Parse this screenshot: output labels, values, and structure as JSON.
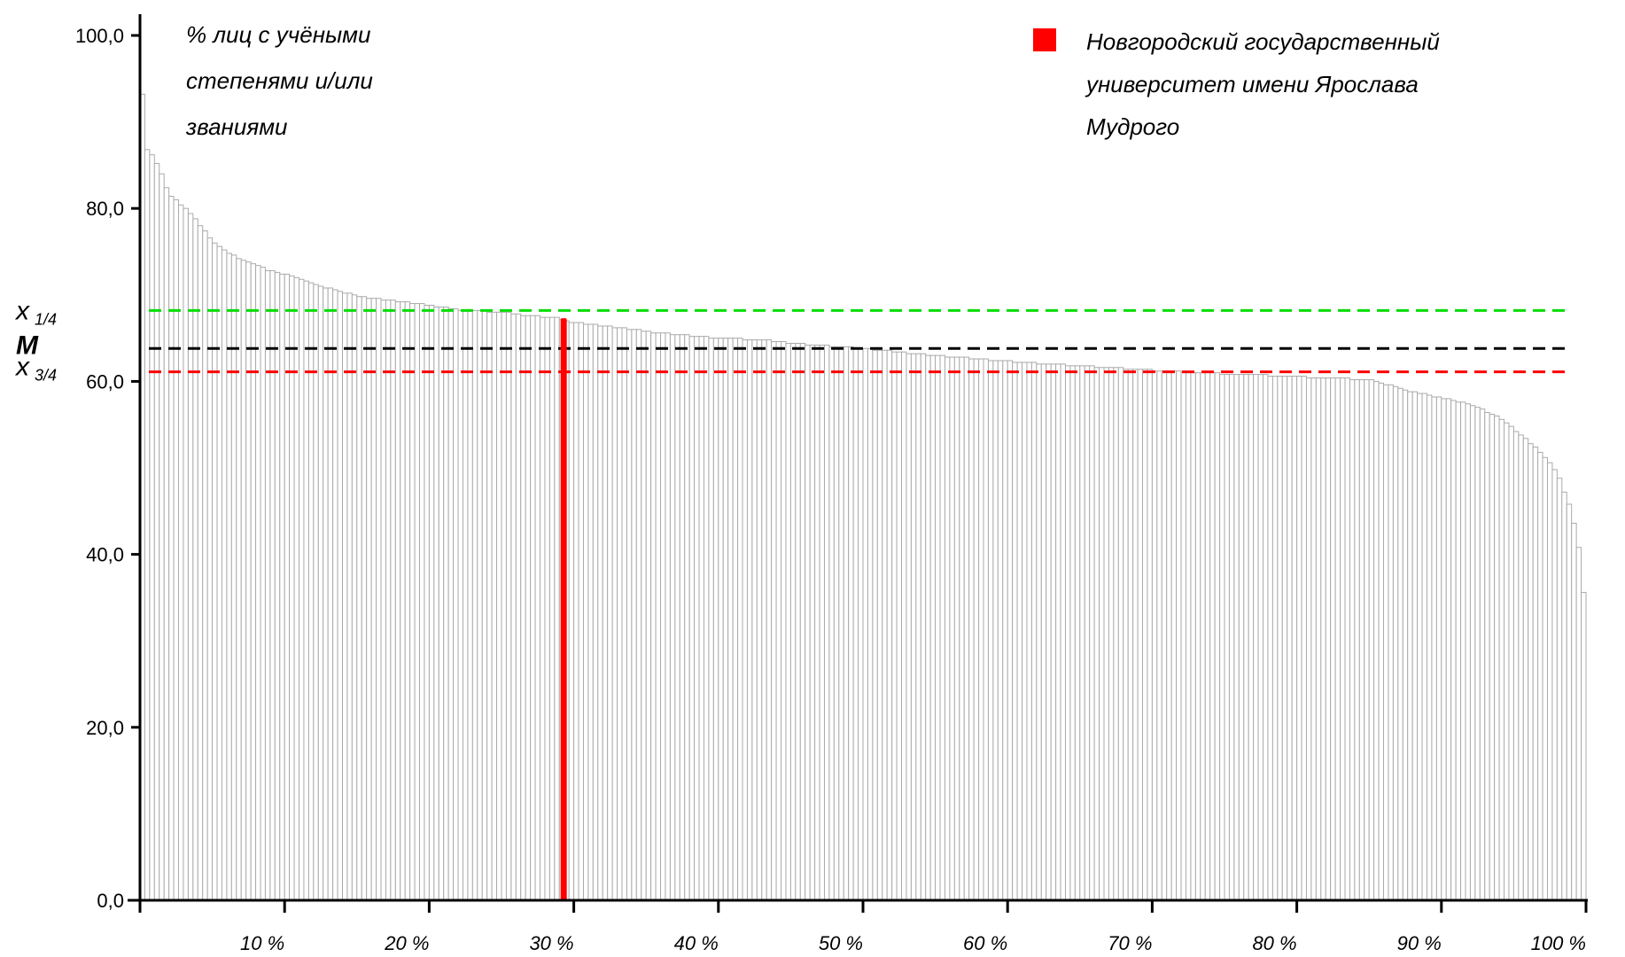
{
  "chart_data": {
    "type": "bar",
    "title_lines": [
      "% лиц с учёными",
      "степенями и/или",
      "званиями"
    ],
    "ylim": [
      0,
      100
    ],
    "yticks": [
      "100,0",
      "80,0",
      "60,0",
      "40,0",
      "20,0",
      "0,0"
    ],
    "ytick_values": [
      100,
      80,
      60,
      40,
      20,
      0
    ],
    "xlim": [
      0,
      100
    ],
    "xticks": [
      "10 %",
      "20 %",
      "30 %",
      "40 %",
      "50 %",
      "60 %",
      "70 %",
      "80 %",
      "90 %",
      "100 %"
    ],
    "xtick_values": [
      10,
      20,
      30,
      40,
      50,
      60,
      70,
      80,
      90,
      100
    ],
    "legend": {
      "placement": "top-right",
      "color": "#ff0000",
      "lines": [
        "Новгородский государственный",
        "университет имени Ярослава",
        "Мудрого"
      ]
    },
    "highlight": {
      "x": 29.3,
      "value": 67.3,
      "color": "#ff0000"
    },
    "reference_lines": [
      {
        "label": "x",
        "sub": "1/4",
        "value": 68.2,
        "color": "#00dd00"
      },
      {
        "label": "M",
        "sub": "",
        "value": 63.8,
        "color": "#000000"
      },
      {
        "label": "x",
        "sub": "3/4",
        "value": 61.1,
        "color": "#ff0000"
      }
    ],
    "bar_color": "#aaaaaa",
    "distribution_profile": [
      [
        0,
        93.1
      ],
      [
        0.3,
        93.1
      ],
      [
        0.5,
        86.8
      ],
      [
        1,
        85.9
      ],
      [
        1.5,
        84.0
      ],
      [
        2,
        81.6
      ],
      [
        3,
        80.2
      ],
      [
        4,
        78.4
      ],
      [
        5,
        76.2
      ],
      [
        6,
        75.0
      ],
      [
        7,
        74.0
      ],
      [
        8,
        73.4
      ],
      [
        9,
        72.8
      ],
      [
        10,
        72.4
      ],
      [
        11,
        72.0
      ],
      [
        12,
        71.3
      ],
      [
        14,
        70.3
      ],
      [
        16,
        69.6
      ],
      [
        18,
        69.2
      ],
      [
        20,
        68.8
      ],
      [
        22,
        68.3
      ],
      [
        25,
        68.0
      ],
      [
        27,
        67.6
      ],
      [
        29,
        67.3
      ],
      [
        30,
        66.8
      ],
      [
        33,
        66.2
      ],
      [
        36,
        65.6
      ],
      [
        40,
        65.0
      ],
      [
        43,
        64.8
      ],
      [
        46,
        64.3
      ],
      [
        50,
        63.8
      ],
      [
        55,
        63.0
      ],
      [
        58,
        62.6
      ],
      [
        62,
        62.1
      ],
      [
        65,
        61.8
      ],
      [
        70,
        61.3
      ],
      [
        73,
        61.0
      ],
      [
        78,
        60.7
      ],
      [
        82,
        60.4
      ],
      [
        85,
        60.2
      ],
      [
        88,
        58.8
      ],
      [
        90,
        58.1
      ],
      [
        92,
        57.3
      ],
      [
        94,
        55.9
      ],
      [
        95,
        54.5
      ],
      [
        96,
        53.1
      ],
      [
        97,
        51.5
      ],
      [
        98,
        49.5
      ],
      [
        99,
        45.0
      ],
      [
        99.5,
        40.7
      ],
      [
        100,
        33.2
      ]
    ]
  }
}
